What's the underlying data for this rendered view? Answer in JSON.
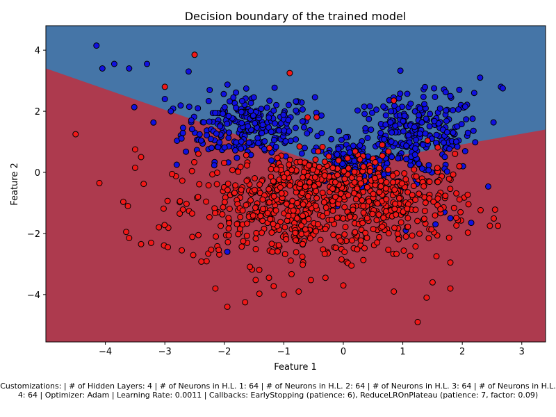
{
  "chart_data": {
    "type": "scatter",
    "title": "Decision boundary of the trained model",
    "xlabel": "Feature 1",
    "ylabel": "Feature 2",
    "xlim": [
      -5.0,
      3.4
    ],
    "ylim": [
      -5.55,
      4.8
    ],
    "xticks": [
      -4,
      -3,
      -2,
      -1,
      0,
      1,
      2,
      3
    ],
    "yticks": [
      -4,
      -2,
      0,
      2,
      4
    ],
    "grid": false,
    "legend": "none",
    "decision_boundary": {
      "left_line": [
        [
          -5.0,
          3.4
        ],
        [
          -0.2,
          0.15
        ]
      ],
      "right_line": [
        [
          -0.2,
          0.15
        ],
        [
          3.4,
          1.4
        ]
      ],
      "regions": [
        {
          "class": "blue",
          "color": "#4575a7",
          "side": "above"
        },
        {
          "class": "red",
          "color": "#ad3a4e",
          "side": "below"
        }
      ]
    },
    "series": [
      {
        "color": "#1010e0",
        "clusters": [
          {
            "cx": -1.6,
            "cy": 1.5,
            "sx": 0.55,
            "sy": 0.55,
            "n": 260
          },
          {
            "cx": 1.2,
            "cy": 1.2,
            "sx": 0.55,
            "sy": 0.65,
            "n": 260
          },
          {
            "cx": 0.1,
            "cy": 0.3,
            "sx": 0.35,
            "sy": 0.35,
            "n": 100
          }
        ],
        "points": [
          [
            -4.15,
            4.15
          ],
          [
            -4.05,
            3.4
          ],
          [
            -3.85,
            3.55
          ],
          [
            -3.6,
            3.4
          ],
          [
            -3.3,
            3.55
          ],
          [
            -2.6,
            3.3
          ],
          [
            2.3,
            3.1
          ],
          [
            2.65,
            2.8
          ],
          [
            2.68,
            2.75
          ],
          [
            1.8,
            2.5
          ],
          [
            1.95,
            2.7
          ],
          [
            2.2,
            2.6
          ],
          [
            -3.0,
            2.4
          ],
          [
            -2.9,
            2.0
          ],
          [
            -2.8,
            0.25
          ],
          [
            0.9,
            -0.3
          ],
          [
            1.05,
            -1.9
          ],
          [
            1.55,
            -1.7
          ],
          [
            1.8,
            -1.5
          ],
          [
            2.15,
            -1.65
          ],
          [
            1.7,
            -1.3
          ],
          [
            -1.95,
            -2.6
          ],
          [
            2.05,
            2.15
          ],
          [
            0.8,
            2.0
          ]
        ]
      },
      {
        "color": "#f01818",
        "clusters": [
          {
            "cx": -1.0,
            "cy": -1.3,
            "sx": 0.9,
            "sy": 0.85,
            "n": 420
          },
          {
            "cx": 0.9,
            "cy": -1.0,
            "sx": 0.6,
            "sy": 0.7,
            "n": 260
          },
          {
            "cx": -0.5,
            "cy": -0.2,
            "sx": 0.5,
            "sy": 0.4,
            "n": 120
          }
        ],
        "points": [
          [
            -2.5,
            3.85
          ],
          [
            -0.9,
            3.25
          ],
          [
            -3.0,
            2.8
          ],
          [
            -4.5,
            1.25
          ],
          [
            -4.1,
            -0.35
          ],
          [
            -3.5,
            0.75
          ],
          [
            -3.4,
            0.5
          ],
          [
            -3.5,
            0.15
          ],
          [
            -3.65,
            -1.95
          ],
          [
            -3.6,
            -2.15
          ],
          [
            -3.4,
            -2.35
          ],
          [
            -2.95,
            -2.45
          ],
          [
            -3.1,
            -1.8
          ],
          [
            -1.95,
            -4.4
          ],
          [
            -1.65,
            -4.25
          ],
          [
            -1.0,
            -4.0
          ],
          [
            -0.75,
            -3.9
          ],
          [
            0.85,
            -3.9
          ],
          [
            1.4,
            -4.1
          ],
          [
            1.25,
            -4.9
          ],
          [
            1.5,
            -3.6
          ],
          [
            1.8,
            -3.8
          ],
          [
            1.8,
            -2.95
          ],
          [
            2.6,
            -1.75
          ],
          [
            1.95,
            0.2
          ],
          [
            0.85,
            2.35
          ],
          [
            -0.45,
            1.8
          ],
          [
            -0.6,
            1.8
          ],
          [
            -2.15,
            -3.8
          ],
          [
            -1.25,
            -3.45
          ],
          [
            0.0,
            -3.7
          ],
          [
            -0.3,
            -3.45
          ]
        ]
      }
    ]
  },
  "caption": "Customizations: | # of Hidden Layers: 4 | # of Neurons in H.L. 1: 64 | # of Neurons in H.L. 2: 64 | # of Neurons in H.L. 3: 64 | # of Neurons in H.L. 4: 64 | Optimizer: Adam | Learning Rate: 0.0011 | Callbacks: EarlyStopping (patience: 6), ReduceLROnPlateau (patience: 7, factor: 0.09)"
}
